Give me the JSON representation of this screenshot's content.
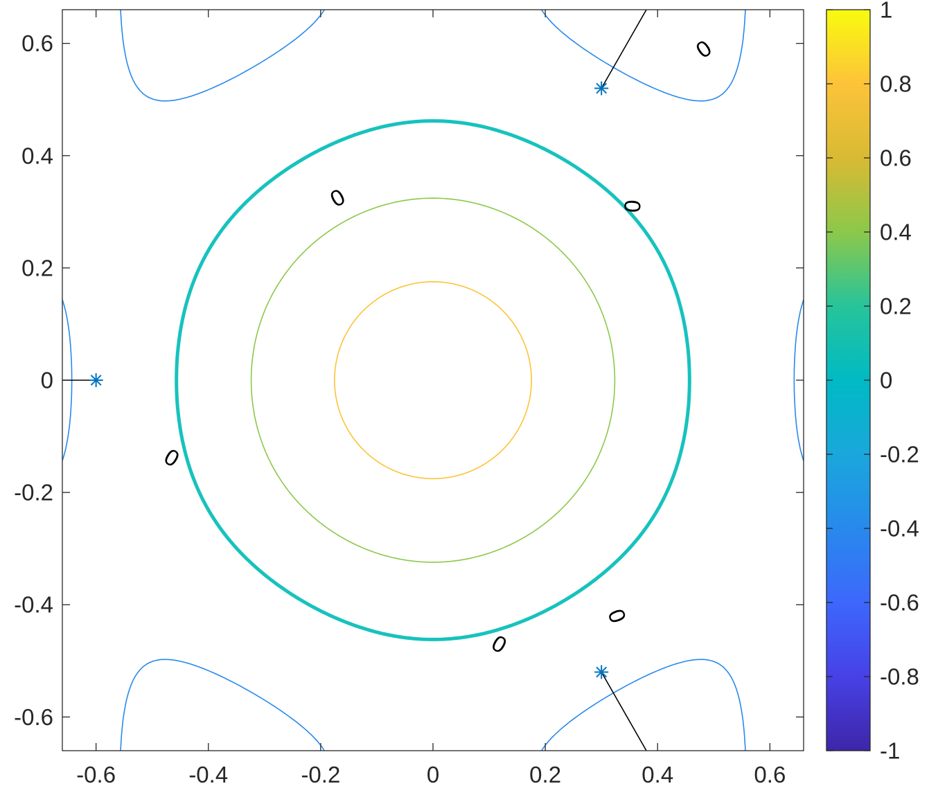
{
  "chart_data": {
    "type": "contour",
    "title": "",
    "xlabel": "",
    "ylabel": "",
    "xlim": [
      -0.66,
      0.66
    ],
    "ylim": [
      -0.66,
      0.66
    ],
    "grid": false,
    "x_ticks": [
      -0.6,
      -0.4,
      -0.2,
      0,
      0.2,
      0.4,
      0.6
    ],
    "x_tick_labels": [
      "-0.6",
      "-0.4",
      "-0.2",
      "0",
      "0.2",
      "0.4",
      "0.6"
    ],
    "y_ticks": [
      0.6,
      0.4,
      0.2,
      0,
      -0.2,
      -0.4,
      -0.6
    ],
    "y_tick_labels": [
      "0.6",
      "0.4",
      "0.2",
      "0",
      "-0.2",
      "-0.4",
      "-0.6"
    ],
    "colorbar": {
      "limits": [
        -1,
        1
      ],
      "ticks": [
        1,
        0.8,
        0.6,
        0.4,
        0.2,
        0,
        -0.2,
        -0.4,
        -0.6,
        -0.8,
        -1
      ],
      "tick_labels": [
        "1",
        "0.8",
        "0.6",
        "0.4",
        "0.2",
        "0",
        "-0.2",
        "-0.4",
        "-0.6",
        "-0.8",
        "-1"
      ],
      "colormap": "parula"
    },
    "contour_levels": [
      -0.8,
      -0.4,
      0,
      0.4,
      0.8
    ],
    "highlight_level": 0,
    "level_label_text": "0",
    "level_label_positions": [
      {
        "x": -0.17,
        "y": 0.325,
        "angle": 29
      },
      {
        "x": 0.355,
        "y": 0.31,
        "angle": 87
      },
      {
        "x": -0.465,
        "y": -0.138,
        "angle": -31
      },
      {
        "x": 0.118,
        "y": -0.47,
        "angle": -30
      },
      {
        "x": 0.328,
        "y": -0.42,
        "angle": -70
      },
      {
        "x": 0.482,
        "y": 0.59,
        "angle": 35
      }
    ],
    "markers": [
      {
        "x": -0.6,
        "y": 0,
        "symbol": "*"
      },
      {
        "x": 0.3,
        "y": 0.52,
        "symbol": "*"
      },
      {
        "x": 0.3,
        "y": -0.52,
        "symbol": "*"
      }
    ],
    "marker_lines": [
      {
        "x1": -0.66,
        "y1": 0,
        "x2": -0.6,
        "y2": 0
      },
      {
        "x1": 0.3,
        "y1": 0.52,
        "x2": 0.38,
        "y2": 0.66
      },
      {
        "x1": 0.3,
        "y1": -0.52,
        "x2": 0.38,
        "y2": -0.66
      }
    ]
  }
}
